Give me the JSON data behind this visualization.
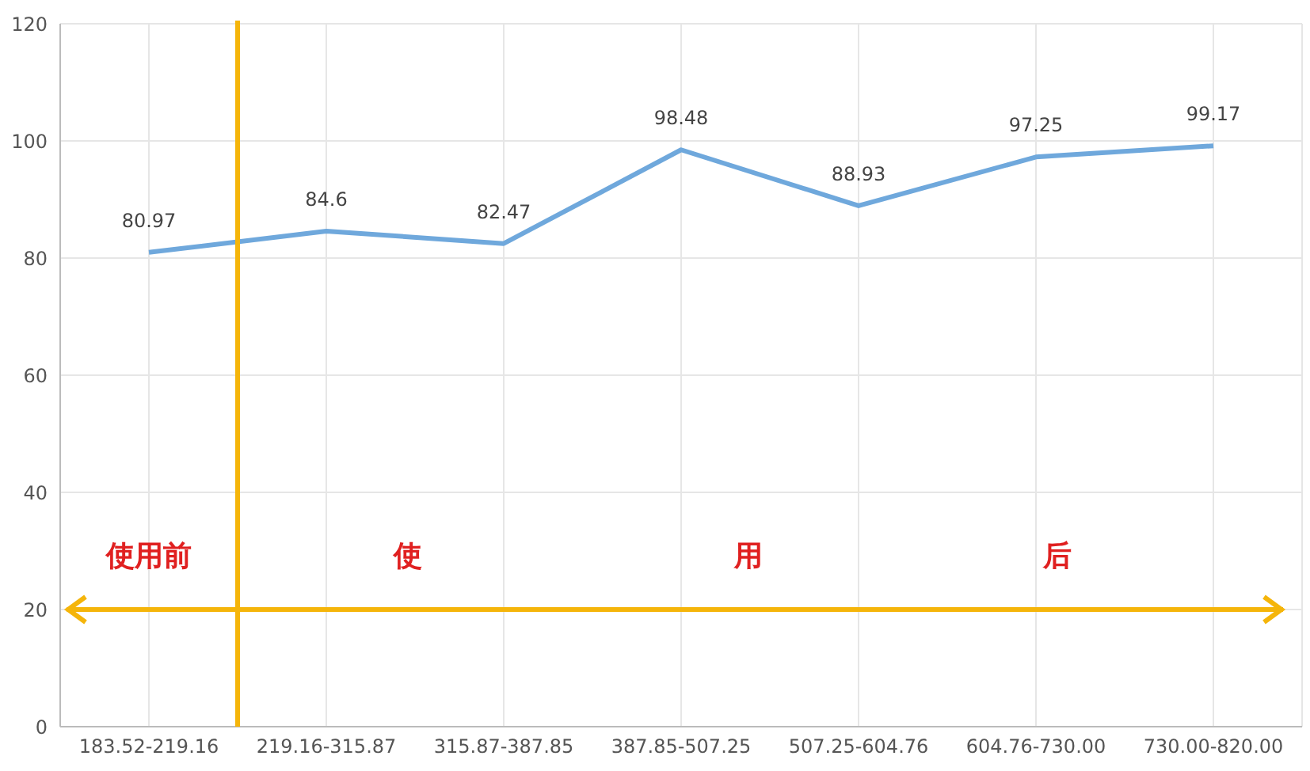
{
  "chart_data": {
    "type": "line",
    "categories": [
      "183.52-219.16",
      "219.16-315.87",
      "315.87-387.85",
      "387.85-507.25",
      "507.25-604.76",
      "604.76-730.00",
      "730.00-820.00"
    ],
    "values": [
      80.97,
      84.6,
      82.47,
      98.48,
      88.93,
      97.25,
      99.17
    ],
    "color": "#6fa8dc",
    "ylim": [
      0,
      120
    ],
    "yticks": [
      0,
      20,
      40,
      60,
      80,
      100,
      120
    ],
    "grid": true,
    "data_labels": true,
    "marker": "none",
    "line_style": "solid",
    "annotations": [
      "使用前",
      "使",
      "用",
      "后"
    ]
  }
}
